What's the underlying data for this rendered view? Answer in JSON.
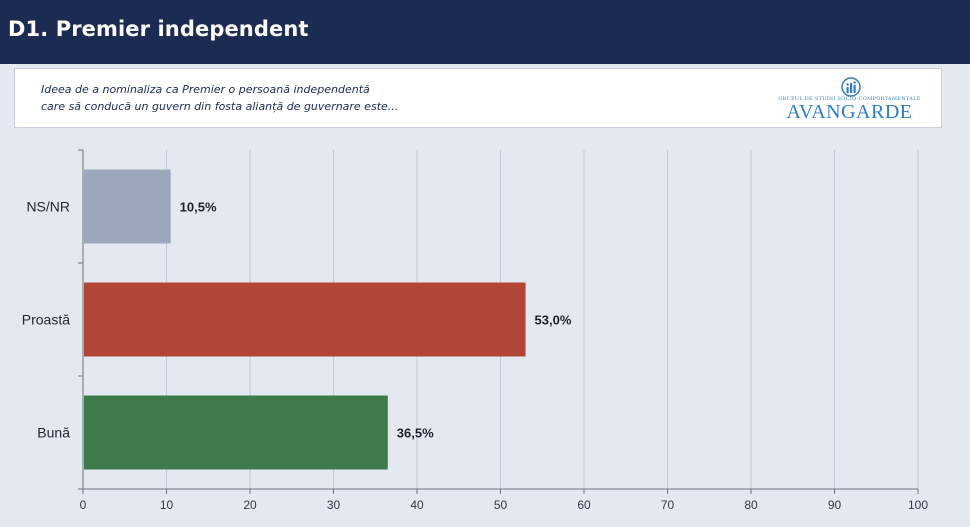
{
  "header": {
    "title": "D1. Premier independent"
  },
  "question": {
    "line1": "Ideea de a nominaliza ca Premier o persoană independentă",
    "line2": "care să conducă un guvern din fosta alianță de guvernare este..."
  },
  "logo": {
    "tagline": "GRUPUL DE STUDII SOCIO-COMPORTAMENTALE",
    "brand": "AVANGARDE"
  },
  "chart_data": {
    "type": "bar",
    "orientation": "horizontal",
    "title": "",
    "xlabel": "",
    "ylabel": "",
    "categories": [
      "NS/NR",
      "Proastă",
      "Bună"
    ],
    "values": [
      10.5,
      53.0,
      36.5
    ],
    "value_labels": [
      "10,5%",
      "53,0%",
      "36,5%"
    ],
    "colors": [
      "#9ca7bb",
      "#b34536",
      "#3f7a4c"
    ],
    "xlim": [
      0,
      100
    ],
    "xticks": [
      0,
      10,
      20,
      30,
      40,
      50,
      60,
      70,
      80,
      90,
      100
    ],
    "grid": true,
    "legend": "none"
  }
}
